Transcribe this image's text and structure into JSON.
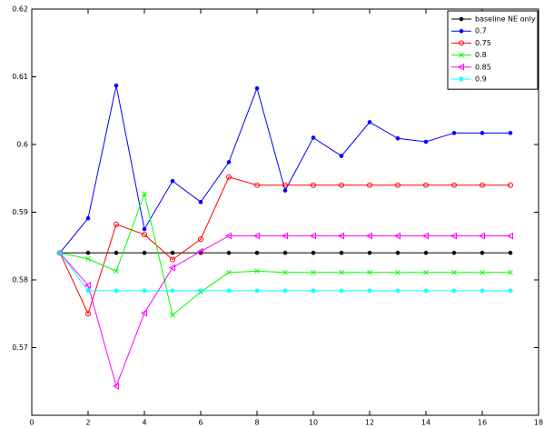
{
  "chart_data": {
    "type": "line",
    "x": [
      1,
      2,
      3,
      4,
      5,
      6,
      7,
      8,
      9,
      10,
      11,
      12,
      13,
      14,
      15,
      16,
      17
    ],
    "xlim": [
      0,
      18
    ],
    "xticks": [
      0,
      2,
      4,
      6,
      8,
      10,
      12,
      14,
      16,
      18
    ],
    "ylim": [
      0.56,
      0.62
    ],
    "yticks": [
      0.57,
      0.58,
      0.59,
      0.6,
      0.61,
      0.62
    ],
    "legend_position": "upper right",
    "series": [
      {
        "name": "baseline NE only",
        "color": "#000000",
        "marker": "dot",
        "values": [
          0.584,
          0.584,
          0.584,
          0.584,
          0.584,
          0.584,
          0.584,
          0.584,
          0.584,
          0.584,
          0.584,
          0.584,
          0.584,
          0.584,
          0.584,
          0.584,
          0.584
        ]
      },
      {
        "name": "0.7",
        "color": "#0000ff",
        "marker": "dot",
        "values": [
          0.584,
          0.5891,
          0.6087,
          0.5875,
          0.5946,
          0.5915,
          0.5974,
          0.6083,
          0.5932,
          0.601,
          0.5983,
          0.6033,
          0.6009,
          0.6004,
          0.6017,
          0.6017,
          0.6017
        ]
      },
      {
        "name": "0.75",
        "color": "#ff0000",
        "marker": "circle",
        "values": [
          0.584,
          0.575,
          0.5882,
          0.5867,
          0.583,
          0.586,
          0.5952,
          0.594,
          0.594,
          0.594,
          0.594,
          0.594,
          0.594,
          0.594,
          0.594,
          0.594,
          0.594
        ]
      },
      {
        "name": "0.8",
        "color": "#00ff00",
        "marker": "x",
        "values": [
          0.584,
          0.5831,
          0.5813,
          0.5927,
          0.5748,
          0.5782,
          0.5811,
          0.5813,
          0.5811,
          0.5811,
          0.5811,
          0.5811,
          0.5811,
          0.5811,
          0.5811,
          0.5811,
          0.5811
        ]
      },
      {
        "name": "0.85",
        "color": "#ff00ff",
        "marker": "triangle-left",
        "values": [
          0.584,
          0.5792,
          0.5643,
          0.5751,
          0.5818,
          0.5842,
          0.5865,
          0.5865,
          0.5865,
          0.5865,
          0.5865,
          0.5865,
          0.5865,
          0.5865,
          0.5865,
          0.5865,
          0.5865
        ]
      },
      {
        "name": "0.9",
        "color": "#00ffff",
        "marker": "star",
        "values": [
          0.584,
          0.5784,
          0.5784,
          0.5784,
          0.5784,
          0.5784,
          0.5784,
          0.5784,
          0.5784,
          0.5784,
          0.5784,
          0.5784,
          0.5784,
          0.5784,
          0.5784,
          0.5784,
          0.5784
        ]
      }
    ]
  }
}
